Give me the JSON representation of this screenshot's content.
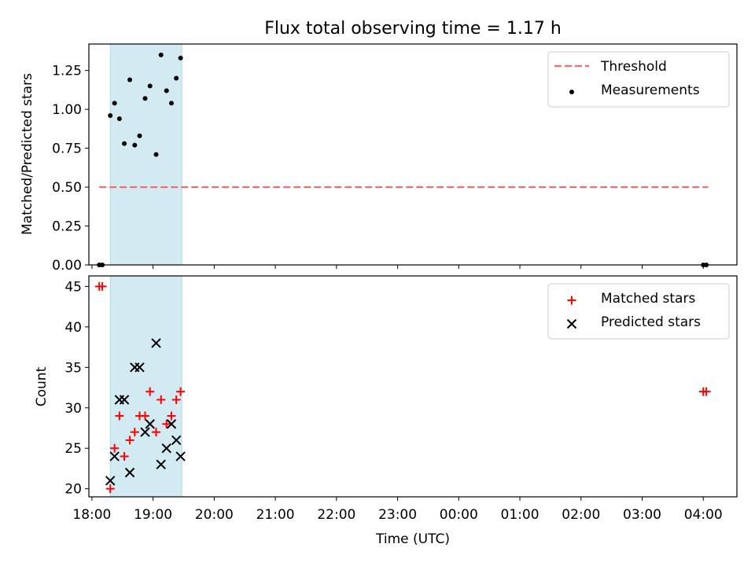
{
  "chart_data": [
    {
      "type": "scatter",
      "title": "Flux total observing time = 1.17 h",
      "ylabel": "Matched/Predicted stars",
      "xlim_hours": [
        17.95,
        28.55
      ],
      "ylim": [
        0,
        1.42
      ],
      "yticks": [
        0.0,
        0.25,
        0.5,
        0.75,
        1.0,
        1.25
      ],
      "ytick_labels": [
        "0.00",
        "0.25",
        "0.50",
        "0.75",
        "1.00",
        "1.25"
      ],
      "shaded_interval_hours": [
        18.3,
        19.47
      ],
      "shaded_color": "#add8e6",
      "legend_position": "top-right",
      "threshold": {
        "name": "Threshold",
        "value": 0.5,
        "x_start_hours": 18.12,
        "x_end_hours": 28.08,
        "color": "#ff6666",
        "style": "dashed"
      },
      "series": [
        {
          "name": "Measurements",
          "marker": "dot",
          "color": "#000000",
          "x_hours": [
            18.12,
            18.17,
            18.3,
            18.37,
            18.45,
            18.53,
            18.62,
            18.7,
            18.78,
            18.87,
            18.95,
            19.05,
            19.13,
            19.22,
            19.3,
            19.38,
            19.45,
            28.0,
            28.05
          ],
          "y": [
            0.0,
            0.0,
            0.96,
            1.04,
            0.94,
            0.78,
            1.19,
            0.77,
            0.83,
            1.07,
            1.15,
            0.71,
            1.35,
            1.12,
            1.04,
            1.2,
            1.33,
            0.0,
            0.0
          ]
        }
      ]
    },
    {
      "type": "scatter",
      "xlabel": "Time (UTC)",
      "ylabel": "Count",
      "xlim_hours": [
        17.95,
        28.55
      ],
      "ylim": [
        19,
        46.3
      ],
      "yticks": [
        20,
        25,
        30,
        35,
        40,
        45
      ],
      "ytick_labels": [
        "20",
        "25",
        "30",
        "35",
        "40",
        "45"
      ],
      "xticks_hours": [
        18,
        19,
        20,
        21,
        22,
        23,
        24,
        25,
        26,
        27,
        28
      ],
      "xtick_labels": [
        "18:00",
        "19:00",
        "20:00",
        "21:00",
        "22:00",
        "23:00",
        "00:00",
        "01:00",
        "02:00",
        "03:00",
        "04:00"
      ],
      "shaded_interval_hours": [
        18.3,
        19.47
      ],
      "shaded_color": "#add8e6",
      "legend_position": "top-right",
      "series": [
        {
          "name": "Matched stars",
          "marker": "plus",
          "color": "#ff0000",
          "x_hours": [
            18.12,
            18.17,
            18.3,
            18.37,
            18.45,
            18.53,
            18.62,
            18.7,
            18.78,
            18.87,
            18.95,
            19.05,
            19.13,
            19.22,
            19.3,
            19.38,
            19.45,
            28.0,
            28.05
          ],
          "y": [
            45,
            45,
            20,
            25,
            29,
            24,
            26,
            27,
            29,
            29,
            32,
            27,
            31,
            28,
            29,
            31,
            32,
            32,
            32
          ]
        },
        {
          "name": "Predicted stars",
          "marker": "x",
          "color": "#000000",
          "x_hours": [
            18.3,
            18.37,
            18.45,
            18.53,
            18.62,
            18.7,
            18.78,
            18.87,
            18.95,
            19.05,
            19.13,
            19.22,
            19.3,
            19.38,
            19.45
          ],
          "y": [
            21,
            24,
            31,
            31,
            22,
            35,
            35,
            27,
            28,
            38,
            23,
            25,
            28,
            26,
            24
          ]
        }
      ]
    }
  ]
}
